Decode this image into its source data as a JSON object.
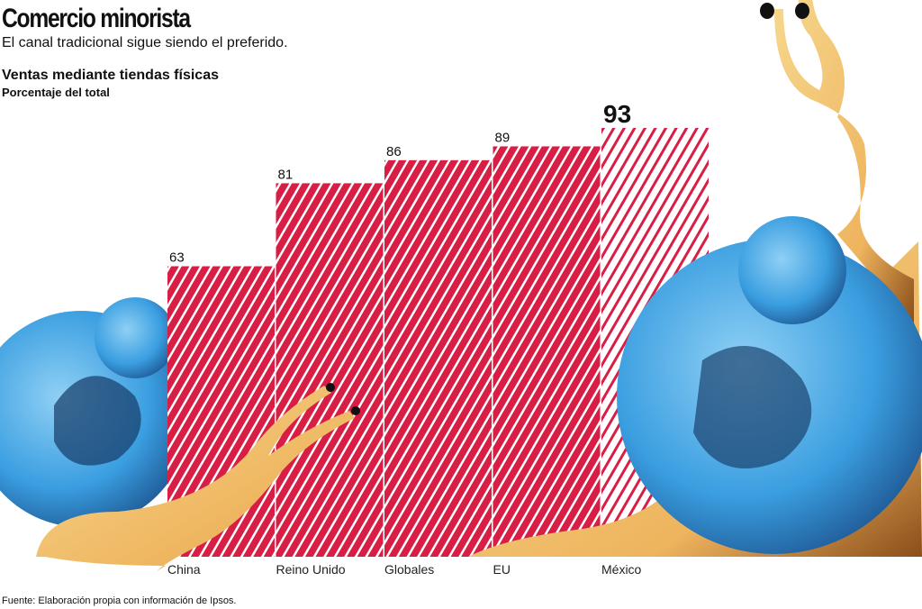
{
  "header": {
    "title": "Comercio minorista",
    "subtitle": "El canal tradicional sigue siendo el preferido."
  },
  "chart_data": {
    "type": "bar",
    "title": "Ventas mediante tiendas físicas",
    "subtitle": "Porcentaje del total",
    "categories": [
      "China",
      "Reino Unido",
      "Globales",
      "EU",
      "México"
    ],
    "values": [
      63,
      81,
      86,
      89,
      93
    ],
    "highlight": "México",
    "ylim": [
      0,
      93
    ],
    "grid": false,
    "colors": {
      "bar": "#d81e45",
      "highlight_stripe": "#d81e45",
      "highlight_bg": "#ffffff",
      "shell": "#3aa0e0",
      "body": "#f2c879"
    }
  },
  "footer": {
    "source": "Fuente: Elaboración propia con información de Ipsos."
  }
}
